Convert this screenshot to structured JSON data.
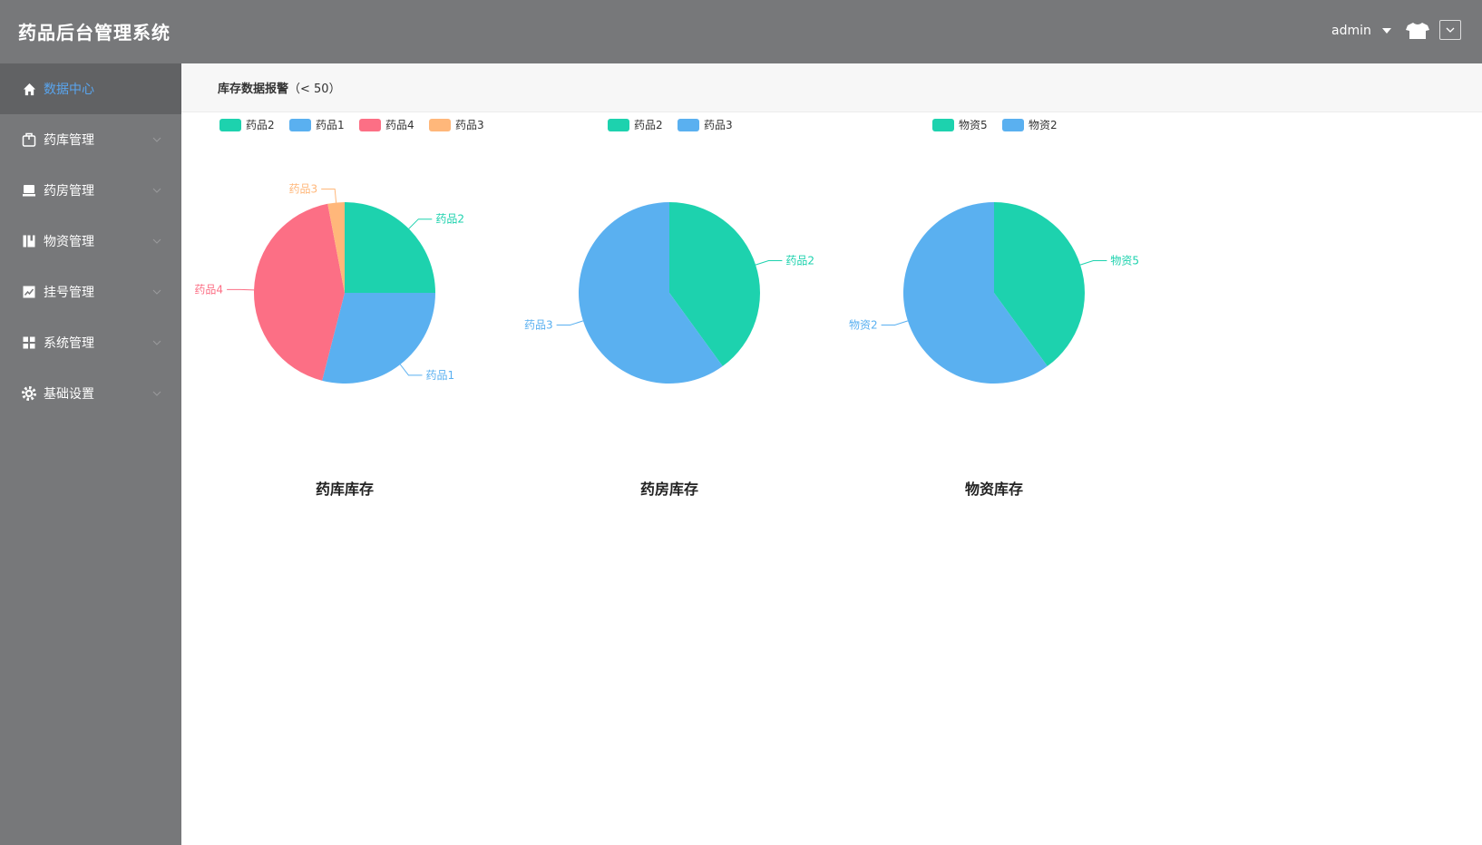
{
  "app": {
    "title": "药品后台管理系统"
  },
  "header": {
    "user": "admin"
  },
  "sidebar": {
    "items": [
      {
        "label": "数据中心",
        "icon": "home-icon",
        "active": true
      },
      {
        "label": "药库管理",
        "icon": "box-icon",
        "active": false
      },
      {
        "label": "药房管理",
        "icon": "store-icon",
        "active": false
      },
      {
        "label": "物资管理",
        "icon": "book-icon",
        "active": false
      },
      {
        "label": "挂号管理",
        "icon": "chart-icon",
        "active": false
      },
      {
        "label": "系统管理",
        "icon": "grid-icon",
        "active": false
      },
      {
        "label": "基础设置",
        "icon": "gear-icon",
        "active": false
      }
    ]
  },
  "main": {
    "heading": "库存数据报警",
    "threshold": "（< 50）"
  },
  "colors": {
    "teal": "#1dd2ae",
    "blue": "#5ab0f0",
    "red": "#fc6f85",
    "orange": "#ffb77a"
  },
  "chart_data": [
    {
      "type": "pie",
      "title": "药库库存",
      "legend": [
        "药品2",
        "药品1",
        "药品4",
        "药品3"
      ],
      "slices": [
        {
          "name": "药品2",
          "value": 25,
          "color": "#1dd2ae"
        },
        {
          "name": "药品1",
          "value": 29,
          "color": "#5ab0f0"
        },
        {
          "name": "药品4",
          "value": 43,
          "color": "#fc6f85"
        },
        {
          "name": "药品3",
          "value": 3,
          "color": "#ffb77a"
        }
      ]
    },
    {
      "type": "pie",
      "title": "药房库存",
      "legend": [
        "药品2",
        "药品3"
      ],
      "slices": [
        {
          "name": "药品2",
          "value": 40,
          "color": "#1dd2ae"
        },
        {
          "name": "药品3",
          "value": 60,
          "color": "#5ab0f0"
        }
      ]
    },
    {
      "type": "pie",
      "title": "物资库存",
      "legend": [
        "物资5",
        "物资2"
      ],
      "slices": [
        {
          "name": "物资5",
          "value": 40,
          "color": "#1dd2ae"
        },
        {
          "name": "物资2",
          "value": 60,
          "color": "#5ab0f0"
        }
      ]
    }
  ]
}
